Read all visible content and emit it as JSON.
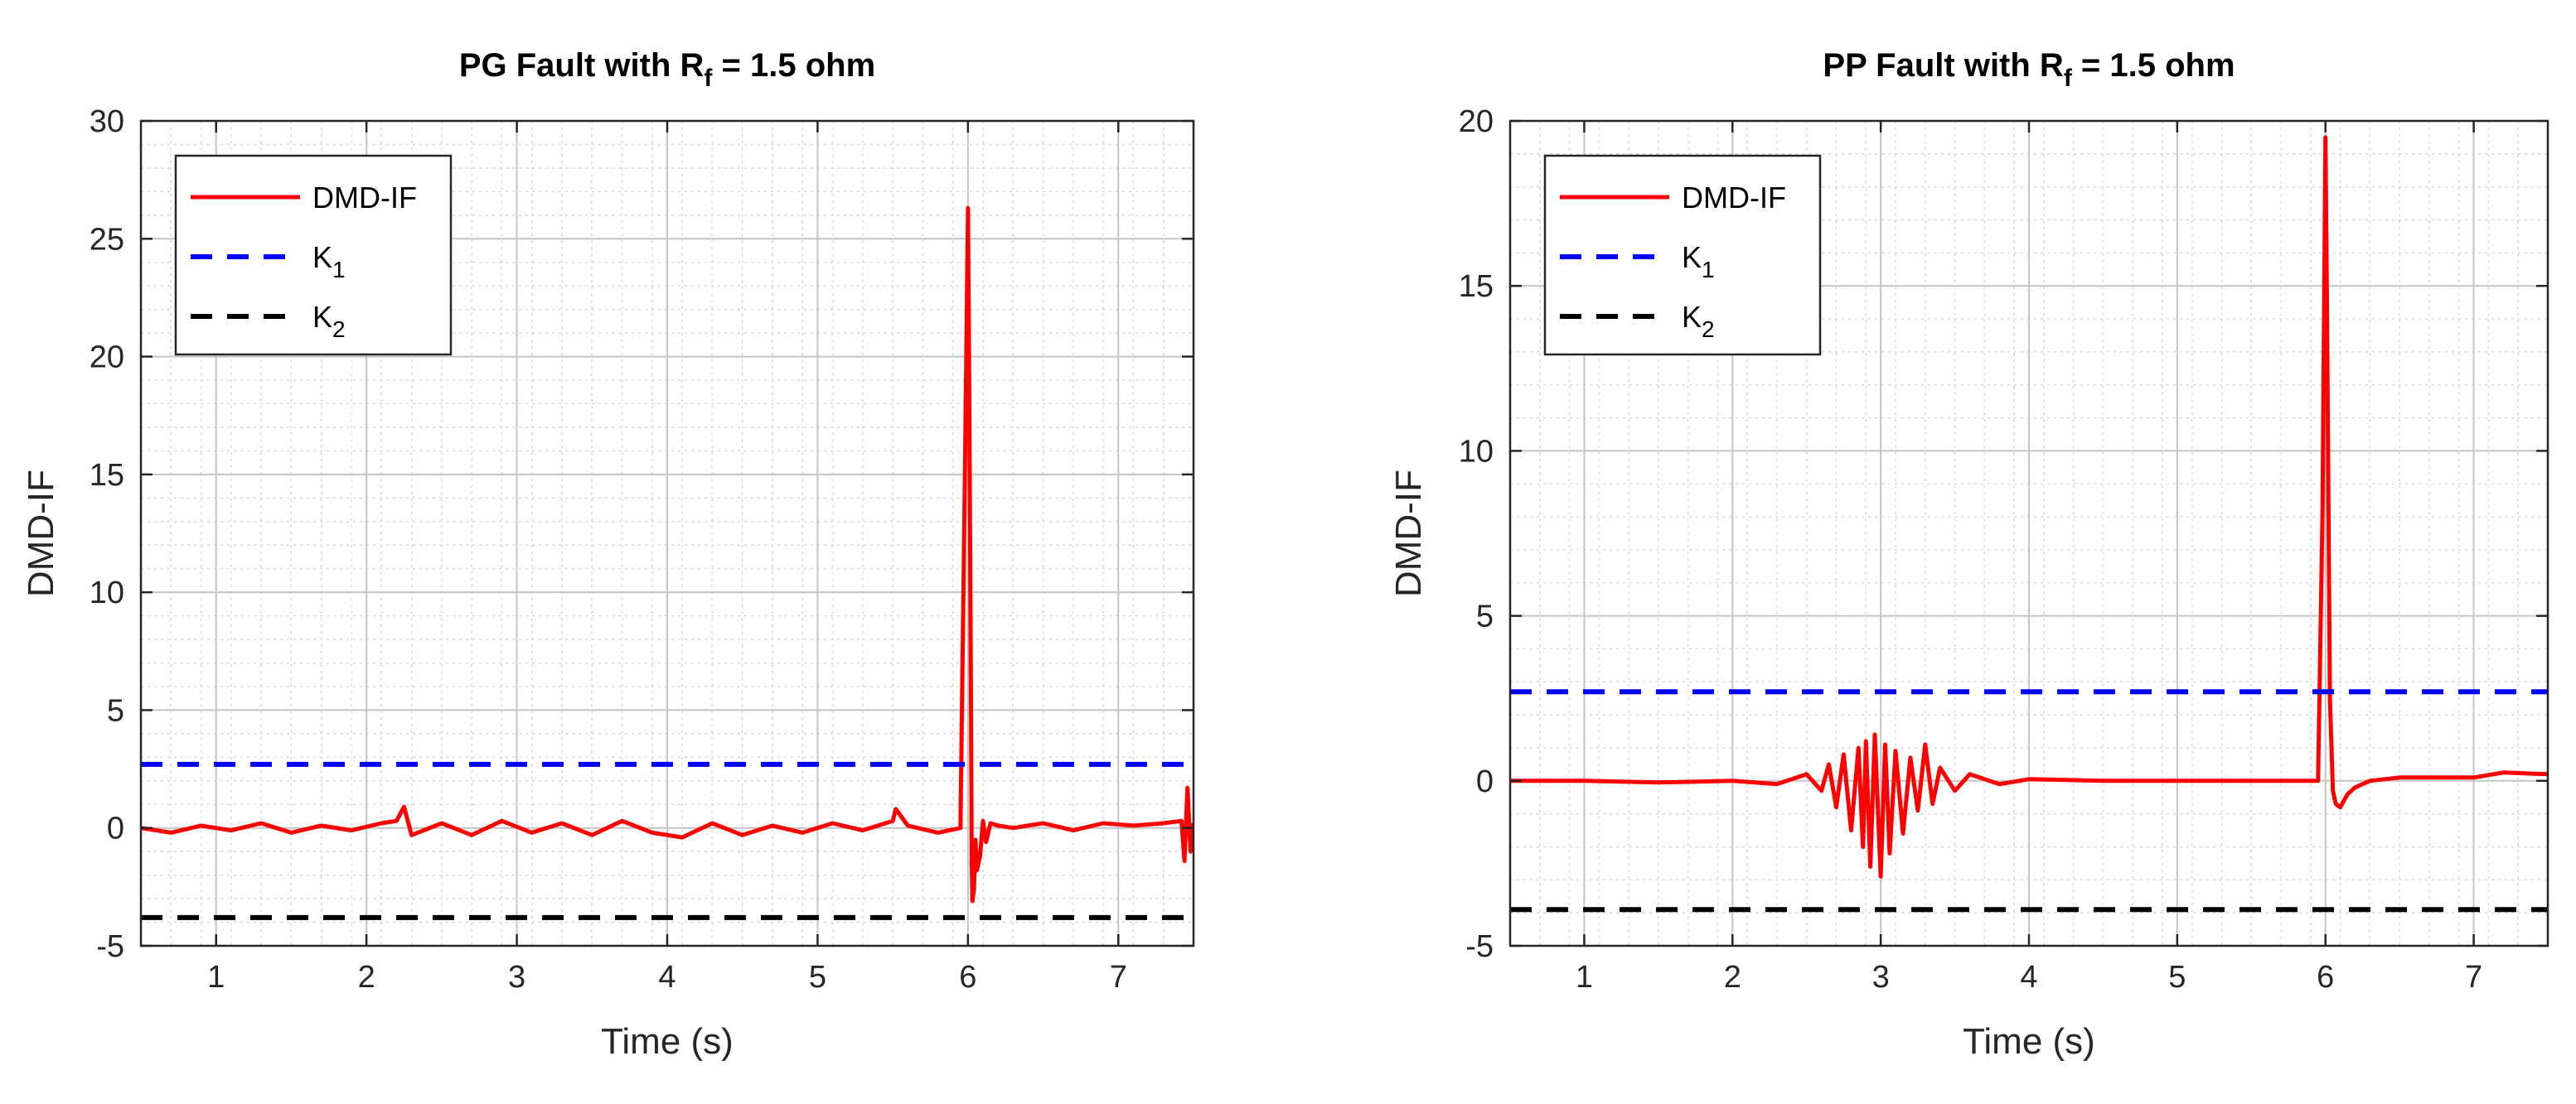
{
  "chart_data": [
    {
      "type": "line",
      "title": "PG Fault with R",
      "title_subscript": "f",
      "title_suffix": " = 1.5 ohm",
      "xlabel": "Time (s)",
      "ylabel": "DMD-IF",
      "xlim": [
        0.5,
        7.5
      ],
      "ylim": [
        -5,
        30
      ],
      "xticks": [
        1,
        2,
        3,
        4,
        5,
        6,
        7
      ],
      "yticks": [
        -5,
        0,
        5,
        10,
        15,
        20,
        25,
        30
      ],
      "grid": true,
      "minor_grid": true,
      "legend_position": "top-left",
      "series": [
        {
          "name": "DMD-IF",
          "style": "solid",
          "color": "#ff0000",
          "x": [
            0.5,
            0.7,
            0.9,
            1.1,
            1.3,
            1.5,
            1.7,
            1.9,
            2.1,
            2.2,
            2.25,
            2.3,
            2.5,
            2.7,
            2.9,
            3.1,
            3.3,
            3.5,
            3.7,
            3.9,
            4.1,
            4.3,
            4.5,
            4.7,
            4.9,
            5.1,
            5.3,
            5.5,
            5.52,
            5.6,
            5.8,
            5.95,
            5.98,
            6.0,
            6.01,
            6.02,
            6.025,
            6.03,
            6.04,
            6.05,
            6.06,
            6.08,
            6.1,
            6.12,
            6.15,
            6.2,
            6.3,
            6.5,
            6.7,
            6.9,
            7.1,
            7.3,
            7.42,
            7.44,
            7.46,
            7.48,
            7.5
          ],
          "y": [
            0,
            -0.2,
            0.1,
            -0.1,
            0.2,
            -0.2,
            0.1,
            -0.1,
            0.2,
            0.3,
            0.9,
            -0.3,
            0.2,
            -0.3,
            0.3,
            -0.2,
            0.2,
            -0.3,
            0.3,
            -0.2,
            -0.4,
            0.2,
            -0.3,
            0.1,
            -0.2,
            0.2,
            -0.1,
            0.3,
            0.8,
            0.1,
            -0.2,
            0,
            15,
            26.3,
            17,
            5.5,
            -1.5,
            -3.1,
            -2.6,
            -0.5,
            -1.8,
            -1.2,
            0.3,
            -0.6,
            0.2,
            0.1,
            0,
            0.2,
            -0.1,
            0.2,
            0.1,
            0.2,
            0.3,
            -1.4,
            1.7,
            -1.0,
            0.2
          ]
        },
        {
          "name": "K",
          "name_subscript": "1",
          "style": "dashed",
          "color": "#0000ff",
          "x": [
            0.5,
            7.5
          ],
          "y": [
            2.7,
            2.7
          ]
        },
        {
          "name": "K",
          "name_subscript": "2",
          "style": "dashed",
          "color": "#000000",
          "x": [
            0.5,
            7.5
          ],
          "y": [
            -3.8,
            -3.8
          ]
        }
      ]
    },
    {
      "type": "line",
      "title": "PP Fault with R",
      "title_subscript": "f",
      "title_suffix": " = 1.5 ohm",
      "xlabel": "Time (s)",
      "ylabel": "DMD-IF",
      "xlim": [
        0.5,
        7.5
      ],
      "ylim": [
        -5,
        20
      ],
      "xticks": [
        1,
        2,
        3,
        4,
        5,
        6,
        7
      ],
      "yticks": [
        -5,
        0,
        5,
        10,
        15,
        20
      ],
      "grid": true,
      "minor_grid": true,
      "legend_position": "top-left",
      "series": [
        {
          "name": "DMD-IF",
          "style": "solid",
          "color": "#ff0000",
          "x": [
            0.5,
            1.0,
            1.5,
            2.0,
            2.3,
            2.5,
            2.6,
            2.65,
            2.7,
            2.75,
            2.8,
            2.85,
            2.88,
            2.9,
            2.93,
            2.96,
            3.0,
            3.03,
            3.06,
            3.1,
            3.15,
            3.2,
            3.25,
            3.3,
            3.35,
            3.4,
            3.5,
            3.6,
            3.8,
            4.0,
            4.5,
            5.0,
            5.5,
            5.95,
            5.98,
            6.0,
            6.01,
            6.03,
            6.05,
            6.07,
            6.1,
            6.15,
            6.2,
            6.3,
            6.5,
            7.0,
            7.2,
            7.5
          ],
          "y": [
            0,
            0,
            -0.05,
            0,
            -0.1,
            0.2,
            -0.3,
            0.5,
            -0.8,
            0.8,
            -1.5,
            1.0,
            -2.0,
            1.2,
            -2.6,
            1.4,
            -2.9,
            1.1,
            -2.2,
            0.9,
            -1.6,
            0.7,
            -0.9,
            1.1,
            -0.7,
            0.4,
            -0.3,
            0.2,
            -0.1,
            0.05,
            0,
            0,
            0,
            0,
            8,
            19.5,
            14.5,
            2.5,
            -0.3,
            -0.7,
            -0.8,
            -0.4,
            -0.2,
            0,
            0.1,
            0.1,
            0.25,
            0.2
          ]
        },
        {
          "name": "K",
          "name_subscript": "1",
          "style": "dashed",
          "color": "#0000ff",
          "x": [
            0.5,
            7.5
          ],
          "y": [
            2.7,
            2.7
          ]
        },
        {
          "name": "K",
          "name_subscript": "2",
          "style": "dashed",
          "color": "#000000",
          "x": [
            0.5,
            7.5
          ],
          "y": [
            -3.9,
            -3.9
          ]
        }
      ]
    }
  ]
}
